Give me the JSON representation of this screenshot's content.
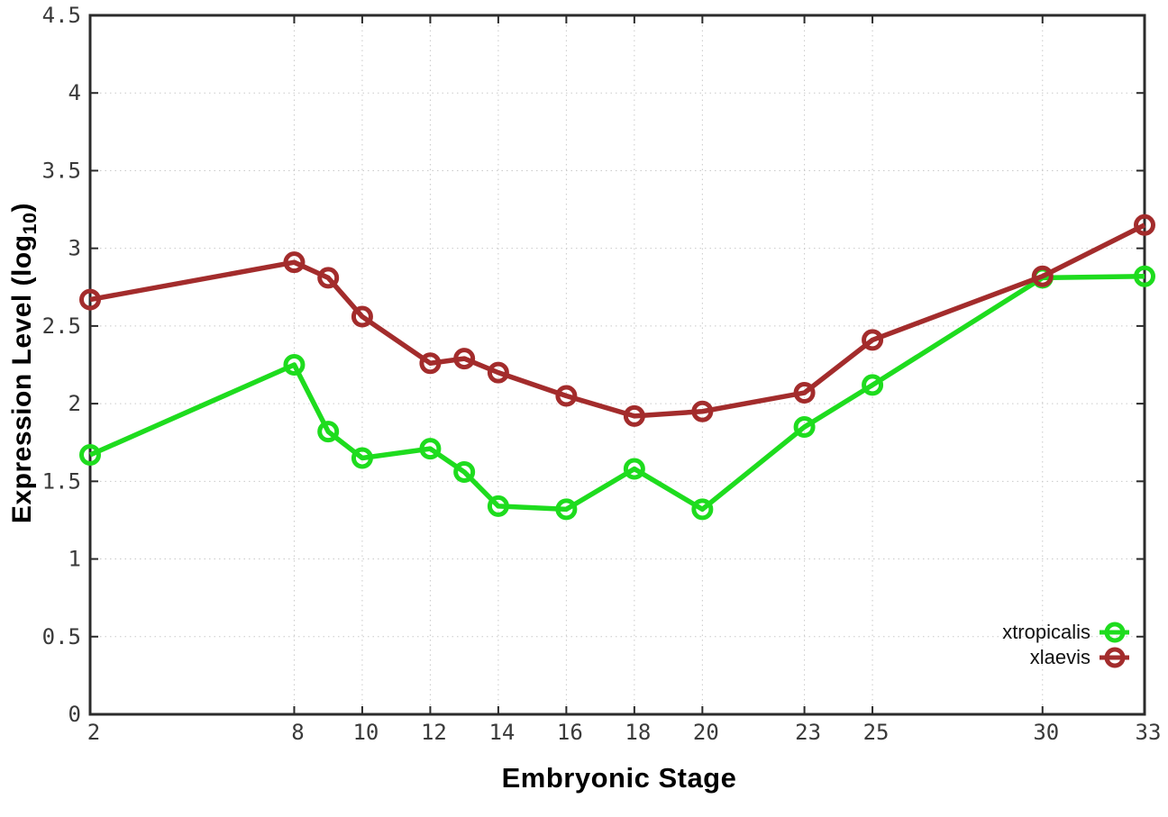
{
  "figure": {
    "xlabel": "Embryonic Stage",
    "ylabel_prefix": "Expression Level (log",
    "ylabel_sub": "10",
    "ylabel_suffix": ")"
  },
  "chart_data": {
    "type": "line",
    "title": "",
    "xlabel": "Embryonic Stage",
    "ylabel": "Expression Level (log10)",
    "x": [
      2,
      8,
      9,
      10,
      12,
      13,
      14,
      16,
      18,
      20,
      23,
      25,
      30,
      33
    ],
    "series": [
      {
        "name": "xtropicalis",
        "color": "#1edc1e",
        "values": [
          1.67,
          2.25,
          1.82,
          1.65,
          1.71,
          1.56,
          1.34,
          1.32,
          1.58,
          1.32,
          1.85,
          2.12,
          2.81,
          2.82
        ]
      },
      {
        "name": "xlaevis",
        "color": "#a32c2c",
        "values": [
          2.67,
          2.91,
          2.81,
          2.56,
          2.26,
          2.29,
          2.2,
          2.05,
          1.92,
          1.95,
          2.07,
          2.41,
          2.82,
          3.15
        ]
      }
    ],
    "xticks": [
      2,
      8,
      10,
      12,
      14,
      16,
      18,
      20,
      23,
      25,
      30,
      33
    ],
    "yticks": [
      0,
      0.5,
      1,
      1.5,
      2,
      2.5,
      3,
      3.5,
      4,
      4.5
    ],
    "xlim": [
      2,
      33
    ],
    "ylim": [
      0,
      4.5
    ],
    "grid": true,
    "legend_position": "bottom-right-inside",
    "marker": "open-circle",
    "axis_color": "#2b2b2b",
    "grid_color": "#c9c9c9",
    "tick_label_color": "#3a3a3a",
    "background": "#ffffff"
  },
  "legend": {
    "items": [
      {
        "label": "xtropicalis",
        "color": "#1edc1e"
      },
      {
        "label": "xlaevis",
        "color": "#a32c2c"
      }
    ]
  }
}
